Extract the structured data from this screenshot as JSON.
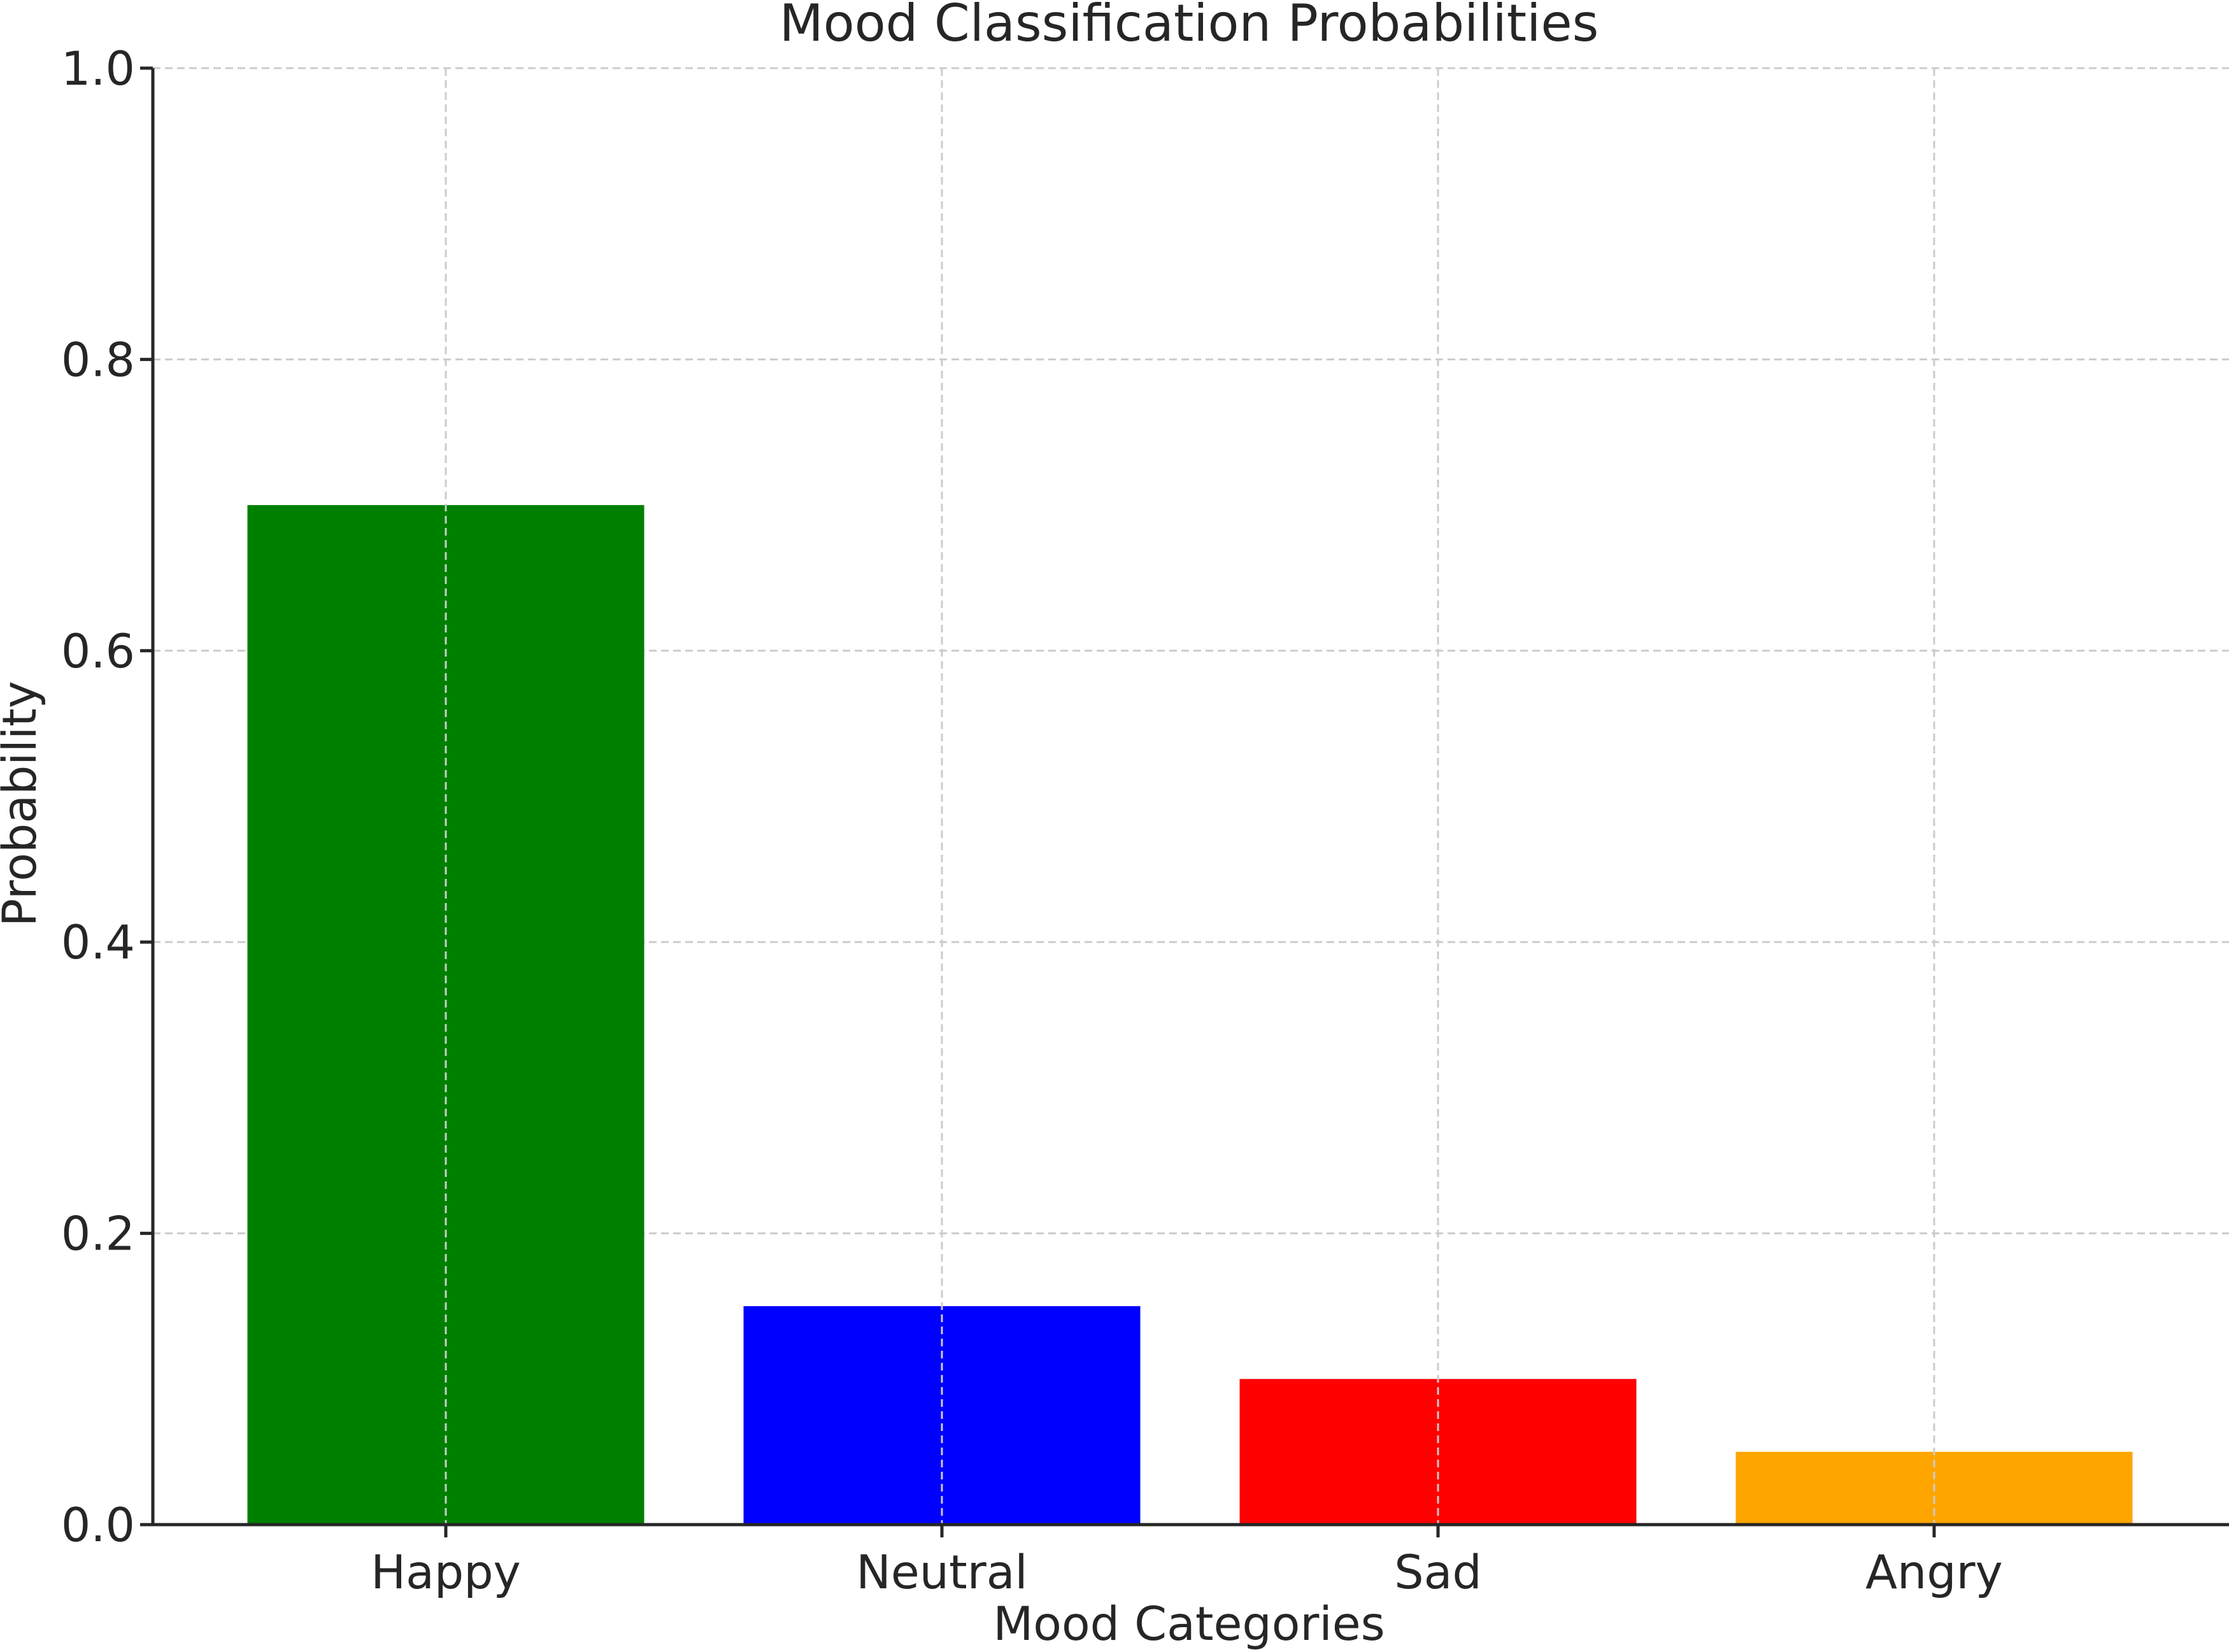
{
  "chart_data": {
    "type": "bar",
    "title": "Mood Classification Probabilities",
    "xlabel": "Mood Categories",
    "ylabel": "Probability",
    "categories": [
      "Happy",
      "Neutral",
      "Sad",
      "Angry"
    ],
    "values": [
      0.7,
      0.15,
      0.1,
      0.05
    ],
    "colors": [
      "#008000",
      "#0000ff",
      "#ff0000",
      "#ffa500"
    ],
    "ylim": [
      0.0,
      1.0
    ],
    "yticks": [
      "0.0",
      "0.2",
      "0.4",
      "0.6",
      "0.8",
      "1.0"
    ],
    "grid": true
  }
}
